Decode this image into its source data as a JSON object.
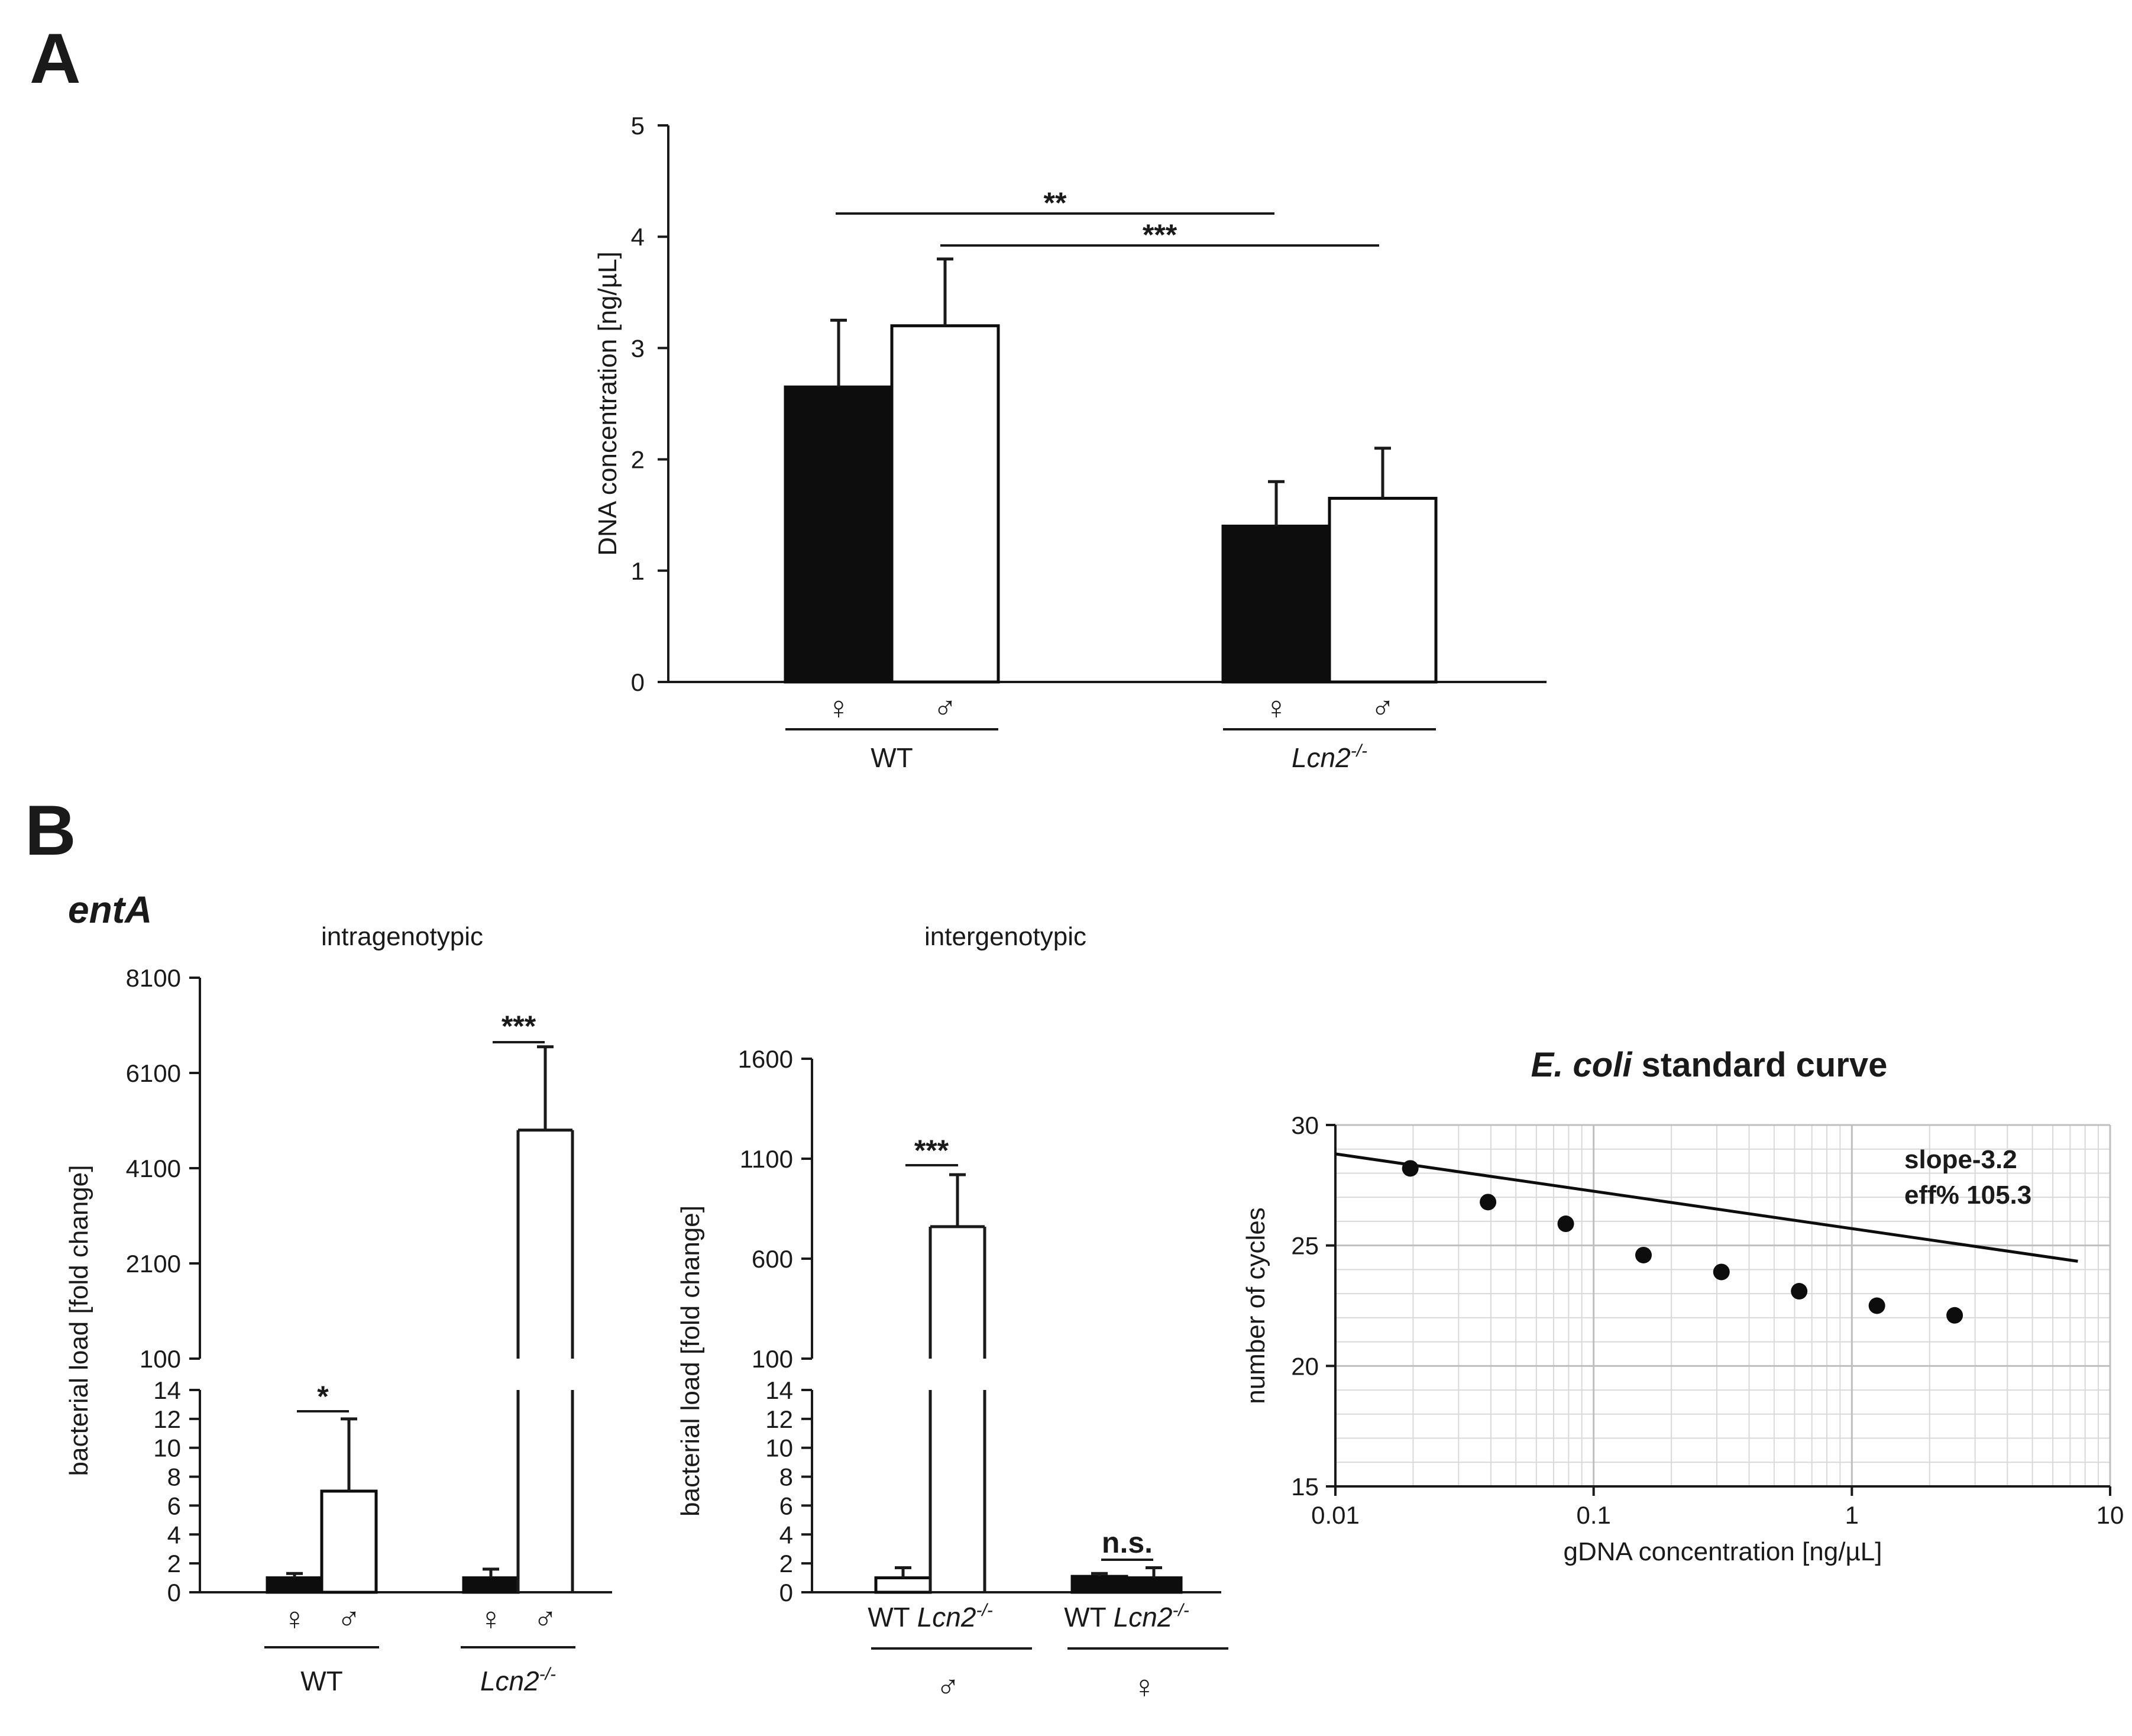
{
  "panels": {
    "a": "A",
    "b": "B"
  },
  "gene_label": "entA",
  "female_symbol": "♀",
  "male_symbol": "♂",
  "chart_data": [
    {
      "id": "panelA",
      "type": "bar",
      "ylabel": "DNA concentration [ng/µL]",
      "ylim": [
        0,
        5
      ],
      "yticks": [
        0,
        1,
        2,
        3,
        4,
        5
      ],
      "groups": [
        {
          "label": "WT",
          "italic": false,
          "sup": "",
          "bars": [
            {
              "sex": "♀",
              "value": 2.65,
              "error": 0.6,
              "fill": "black"
            },
            {
              "sex": "♂",
              "value": 3.2,
              "error": 0.6,
              "fill": "white"
            }
          ]
        },
        {
          "label": "Lcn2",
          "italic": true,
          "sup": "-/-",
          "bars": [
            {
              "sex": "♀",
              "value": 1.4,
              "error": 0.4,
              "fill": "black"
            },
            {
              "sex": "♂",
              "value": 1.65,
              "error": 0.45,
              "fill": "white"
            }
          ]
        }
      ],
      "significance": [
        {
          "label": "**",
          "from": "WT ♀",
          "to": "Lcn2-/- ♀"
        },
        {
          "label": "***",
          "from": "WT ♂",
          "to": "Lcn2-/- ♂"
        }
      ]
    },
    {
      "id": "intragenotypic",
      "type": "bar",
      "title": "intragenotypic",
      "ylabel": "bacterial load [fold change]",
      "broken_axis": true,
      "upper_ticks": [
        "100",
        "2100",
        "4100",
        "6100",
        "8100"
      ],
      "lower_ticks": [
        "0",
        "2",
        "4",
        "6",
        "8",
        "10",
        "12",
        "14"
      ],
      "upper_range": [
        100,
        8100
      ],
      "lower_range": [
        0,
        14
      ],
      "groups": [
        {
          "label": "WT",
          "italic": false,
          "sup": "",
          "bars": [
            {
              "sex": "♀",
              "value": 1.0,
              "error": 0.3,
              "fill": "black"
            },
            {
              "sex": "♂",
              "value": 7.0,
              "error": 5.0,
              "fill": "white"
            }
          ]
        },
        {
          "label": "Lcn2",
          "italic": true,
          "sup": "-/-",
          "bars": [
            {
              "sex": "♀",
              "value": 1.0,
              "error": 0.6,
              "fill": "black"
            },
            {
              "sex": "♂",
              "value": 4900,
              "error": 1750,
              "fill": "white"
            }
          ]
        }
      ],
      "significance": [
        {
          "label": "*",
          "group": "WT"
        },
        {
          "label": "***",
          "group": "Lcn2-/-"
        }
      ]
    },
    {
      "id": "intergenotypic",
      "type": "bar",
      "title": "intergenotypic",
      "ylabel": "bacterial load [fold change]",
      "broken_axis": true,
      "upper_ticks": [
        "100",
        "600",
        "1100",
        "1600"
      ],
      "lower_ticks": [
        "0",
        "2",
        "4",
        "6",
        "8",
        "10",
        "12",
        "14"
      ],
      "upper_range": [
        100,
        1600
      ],
      "lower_range": [
        0,
        14
      ],
      "bar_labels": [
        "WT",
        "Lcn2"
      ],
      "bar_label_sup": "-/-",
      "groups": [
        {
          "label": "♂",
          "bars": [
            {
              "genotype": "WT",
              "value": 1.0,
              "error": 0.7,
              "fill": "white"
            },
            {
              "genotype": "Lcn2-/-",
              "value": 760,
              "error": 260,
              "fill": "white"
            }
          ]
        },
        {
          "label": "♀",
          "bars": [
            {
              "genotype": "WT",
              "value": 1.1,
              "error": 0.2,
              "fill": "black"
            },
            {
              "genotype": "Lcn2-/-",
              "value": 1.0,
              "error": 0.7,
              "fill": "black"
            }
          ]
        }
      ],
      "significance": [
        {
          "label": "***",
          "group": "♂"
        },
        {
          "label": "n.s.",
          "group": "♀"
        }
      ]
    },
    {
      "id": "standardCurve",
      "type": "scatter",
      "title_italic": "E. coli",
      "title_rest": " standard curve",
      "xlabel": "gDNA concentration [ng/µL]",
      "ylabel": "number of cycles",
      "xscale": "log",
      "xlim": [
        0.01,
        10
      ],
      "ylim": [
        15,
        30
      ],
      "xticks": [
        "0.01",
        "0.1",
        "1",
        "10"
      ],
      "yticks": [
        "15",
        "20",
        "25",
        "30"
      ],
      "x": [
        0.0195,
        0.039,
        0.078,
        0.156,
        0.3125,
        0.625,
        1.25,
        2.5
      ],
      "y": [
        28.2,
        26.8,
        25.9,
        24.6,
        23.9,
        23.1,
        22.5,
        22.1
      ],
      "fit": {
        "slope": -1.55,
        "intercept": 25.7,
        "x_range": [
          0.01,
          7.5
        ]
      },
      "annotations": [
        "slope-3.2",
        "eff% 105.3"
      ]
    }
  ]
}
